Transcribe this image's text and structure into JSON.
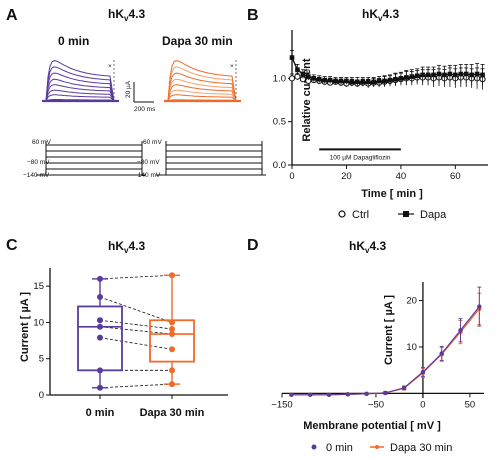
{
  "panels": {
    "A": {
      "label": "A",
      "title_main": "hK",
      "title_sub": "v",
      "title_tail": "4.3",
      "left_label": "0 min",
      "right_label": "Dapa 30 min",
      "scale_current": "20 µA",
      "scale_time": "200 ms",
      "prepulse_mv": "60 mV",
      "step_mv": "−80 mV",
      "hold_mv": "−140 mV",
      "prepulse_mv_2": "60 mV",
      "step_mv_2": "−80 mV",
      "hold_mv_2": "−140 mV"
    },
    "B": {
      "label": "B",
      "title_main": "hK",
      "title_sub": "v",
      "title_tail": "4.3",
      "ylabel": "Relative current",
      "xlabel": "Time [ min ]",
      "bar_label": "100 µM Dapagliflozin",
      "legend": [
        {
          "marker": "open-circle",
          "label": "Ctrl"
        },
        {
          "marker": "filled-square",
          "label": "Dapa"
        }
      ]
    },
    "C": {
      "label": "C",
      "title_main": "hK",
      "title_sub": "v",
      "title_tail": "4.3",
      "ylabel": "Current [ µA ]",
      "cat0": "0 min",
      "cat1": "Dapa 30 min"
    },
    "D": {
      "label": "D",
      "title_main": "hK",
      "title_sub": "v",
      "title_tail": "4.3",
      "ylabel": "Current [ µA ]",
      "xlabel": "Membrane potential [ mV ]",
      "legend": [
        {
          "marker": "dot",
          "label": "0 min"
        },
        {
          "marker": "line-dot",
          "label": "Dapa 30 min"
        }
      ]
    }
  },
  "colors": {
    "purple": "#5b3a9e",
    "orange": "#f06a2a",
    "black": "#111111"
  },
  "chart_data": [
    {
      "type": "line",
      "panel": "B",
      "xlim": [
        0,
        72
      ],
      "ylim": [
        0,
        1.5
      ],
      "xticks": [
        0,
        20,
        40,
        60
      ],
      "yticks": [
        0.0,
        0.5,
        1.0
      ],
      "series": [
        {
          "name": "Ctrl",
          "x": [
            0,
            2,
            4,
            6,
            8,
            10,
            12,
            14,
            16,
            18,
            20,
            22,
            24,
            26,
            28,
            30,
            32,
            34,
            36,
            38,
            40,
            42,
            44,
            46,
            48,
            50,
            52,
            54,
            56,
            58,
            60,
            62,
            64,
            66,
            68,
            70
          ],
          "y": [
            1.0,
            1.02,
            0.99,
            0.97,
            0.98,
            0.97,
            0.96,
            0.95,
            0.96,
            0.95,
            0.94,
            0.95,
            0.94,
            0.95,
            0.94,
            0.95,
            0.95,
            0.96,
            0.97,
            0.98,
            0.99,
            1.0,
            1.0,
            1.01,
            1.01,
            1.01,
            1.0,
            1.01,
            1.0,
            1.01,
            1.0,
            1.01,
            1.01,
            1.0,
            1.0,
            0.99
          ],
          "err": [
            0.05,
            0.04,
            0.03,
            0.03,
            0.03,
            0.03,
            0.03,
            0.03,
            0.03,
            0.04,
            0.04,
            0.04,
            0.04,
            0.04,
            0.05,
            0.05,
            0.05,
            0.06,
            0.06,
            0.07,
            0.07,
            0.08,
            0.08,
            0.08,
            0.09,
            0.09,
            0.1,
            0.1,
            0.1,
            0.11,
            0.11,
            0.11,
            0.11,
            0.11,
            0.12,
            0.12
          ]
        },
        {
          "name": "Dapa",
          "x": [
            0,
            2,
            4,
            6,
            8,
            10,
            12,
            14,
            16,
            18,
            20,
            22,
            24,
            26,
            28,
            30,
            32,
            34,
            36,
            38,
            40,
            42,
            44,
            46,
            48,
            50,
            52,
            54,
            56,
            58,
            60,
            62,
            64,
            66,
            68,
            70
          ],
          "y": [
            1.24,
            1.1,
            1.05,
            1.02,
            1.0,
            0.99,
            0.98,
            0.98,
            0.97,
            0.97,
            0.97,
            0.96,
            0.96,
            0.96,
            0.96,
            0.96,
            0.97,
            0.97,
            0.98,
            0.99,
            1.0,
            1.01,
            1.02,
            1.03,
            1.04,
            1.04,
            1.04,
            1.05,
            1.04,
            1.05,
            1.04,
            1.05,
            1.05,
            1.04,
            1.05,
            1.04
          ],
          "err": [
            0.08,
            0.06,
            0.05,
            0.04,
            0.04,
            0.04,
            0.04,
            0.04,
            0.04,
            0.04,
            0.04,
            0.05,
            0.05,
            0.05,
            0.05,
            0.05,
            0.05,
            0.06,
            0.06,
            0.07,
            0.07,
            0.08,
            0.08,
            0.08,
            0.09,
            0.09,
            0.09,
            0.1,
            0.1,
            0.1,
            0.11,
            0.11,
            0.11,
            0.12,
            0.12,
            0.12
          ]
        }
      ],
      "annotation": {
        "text": "100 µM Dapagliflozin",
        "x": [
          10,
          40
        ],
        "y": 0.18
      }
    },
    {
      "type": "box",
      "panel": "C",
      "ylim": [
        0,
        17.5
      ],
      "yticks": [
        0,
        5,
        10,
        15
      ],
      "categories": [
        "0 min",
        "Dapa 30 min"
      ],
      "series": [
        {
          "name": "0 min",
          "points": [
            16.0,
            13.5,
            10.3,
            9.4,
            7.9,
            3.4,
            1.0
          ],
          "q1": 3.4,
          "median": 9.4,
          "q3": 12.2,
          "min": 1.0,
          "max": 16.0
        },
        {
          "name": "Dapa 30 min",
          "points": [
            16.5,
            10.0,
            9.1,
            8.4,
            6.3,
            3.4,
            1.5
          ],
          "q1": 4.6,
          "median": 8.4,
          "q3": 10.3,
          "min": 1.5,
          "max": 16.5
        }
      ]
    },
    {
      "type": "line",
      "panel": "D",
      "xlim": [
        -150,
        65
      ],
      "ylim": [
        -1,
        24
      ],
      "xticks": [
        -150,
        -50,
        0,
        50
      ],
      "yticks": [
        10,
        20
      ],
      "series": [
        {
          "name": "0 min",
          "x": [
            -140,
            -120,
            -100,
            -80,
            -60,
            -40,
            -20,
            0,
            20,
            40,
            60
          ],
          "y": [
            -0.3,
            -0.3,
            -0.3,
            -0.2,
            -0.1,
            0.1,
            1.2,
            4.6,
            8.6,
            13.6,
            18.7
          ],
          "err": [
            0.2,
            0.2,
            0.2,
            0.2,
            0.2,
            0.3,
            0.4,
            1.0,
            1.5,
            2.5,
            4.2
          ]
        },
        {
          "name": "Dapa 30 min",
          "x": [
            -140,
            -120,
            -100,
            -80,
            -60,
            -40,
            -20,
            0,
            20,
            40,
            60
          ],
          "y": [
            -0.3,
            -0.3,
            -0.3,
            -0.2,
            -0.1,
            0.1,
            1.1,
            4.4,
            8.4,
            13.2,
            18.2
          ],
          "err": [
            0.2,
            0.2,
            0.2,
            0.2,
            0.2,
            0.3,
            0.4,
            1.0,
            1.5,
            2.5,
            3.4
          ]
        }
      ]
    }
  ]
}
